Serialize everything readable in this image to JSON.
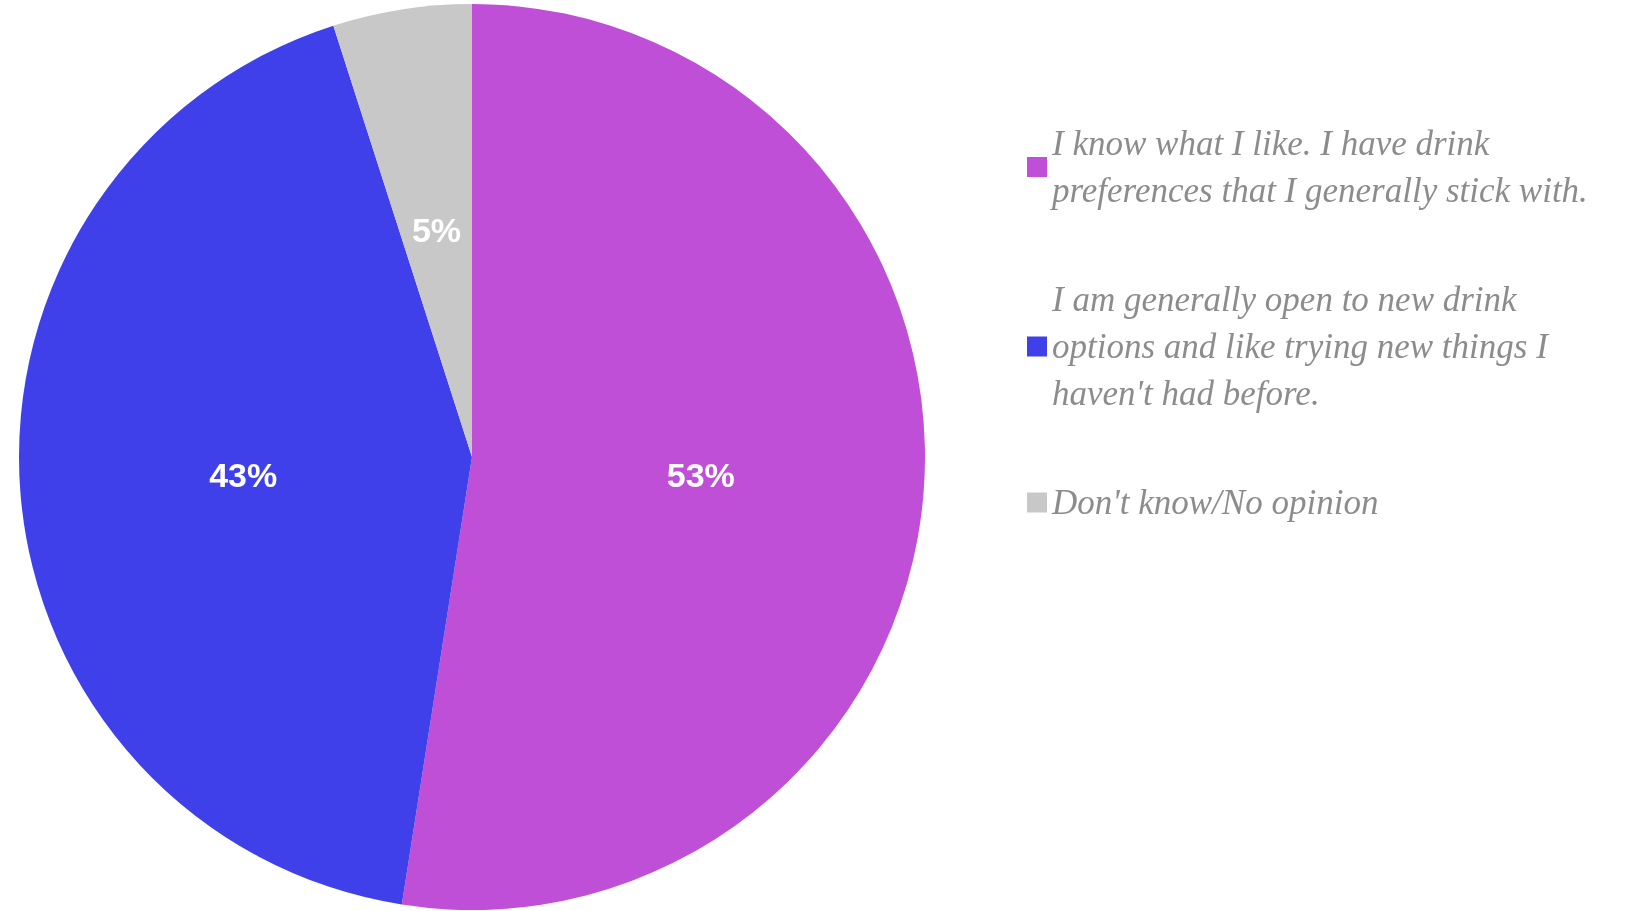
{
  "chart_data": {
    "type": "pie",
    "categories": [
      "I know what I like. I have drink preferences that I generally stick with.",
      "I am generally open to new drink options and like trying new things I haven't had before.",
      "Don't know/No opinion"
    ],
    "values": [
      53,
      43,
      5
    ],
    "colors": [
      "#c04fd8",
      "#4040ea",
      "#c8c8c8"
    ],
    "value_labels": [
      "53%",
      "43%",
      "5%"
    ],
    "legend": "right"
  }
}
